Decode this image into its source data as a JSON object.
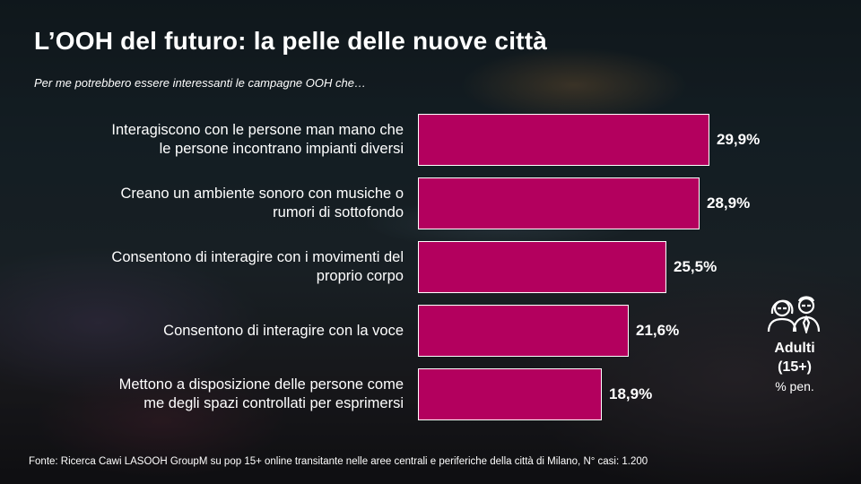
{
  "title": "L’OOH del futuro: la pelle delle nuove città",
  "subtitle": "Per me potrebbero essere interessanti le campagne OOH che…",
  "legend": {
    "main_line1": "Adulti",
    "main_line2": "(15+)",
    "sub": "% pen.",
    "icon": "people-icon"
  },
  "source": "Fonte: Ricerca Cawi LASOOH GroupM su pop 15+ online transitante nelle aree centrali e periferiche della città di Milano, N° casi: 1.200",
  "colors": {
    "bar": "#b3005e",
    "bar_border": "#ffffff",
    "text": "#ffffff"
  },
  "chart_data": {
    "type": "bar",
    "orientation": "horizontal",
    "categories": [
      [
        "Interagiscono con le persone man mano che",
        "le persone incontrano impianti diversi"
      ],
      [
        "Creano un ambiente sonoro con musiche o",
        "rumori di sottofondo"
      ],
      [
        "Consentono di interagire con i movimenti del",
        "proprio corpo"
      ],
      [
        "Consentono di interagire con la voce"
      ],
      [
        "Mettono a disposizione delle persone come",
        "me degli spazi controllati per esprimersi"
      ]
    ],
    "values": [
      29.9,
      28.9,
      25.5,
      21.6,
      18.9
    ],
    "value_labels": [
      "29,9%",
      "28,9%",
      "25,5%",
      "21,6%",
      "18,9%"
    ],
    "grid": false
  }
}
